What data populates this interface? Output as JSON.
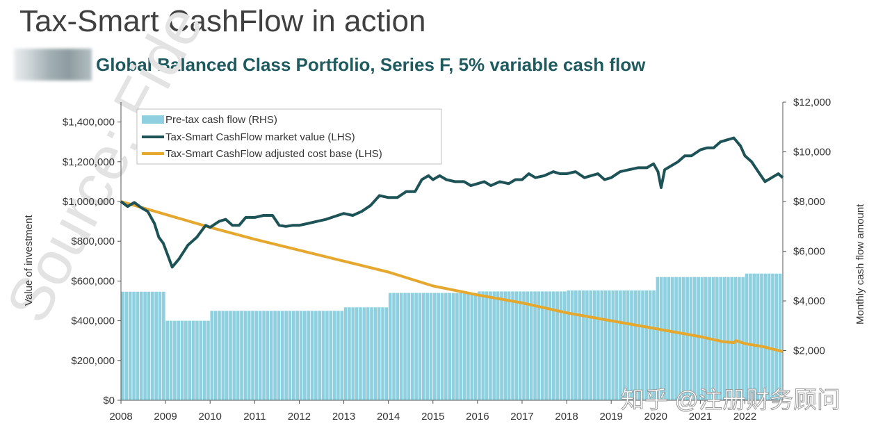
{
  "header": {
    "title": "Tax-Smart CashFlow in action",
    "subtitle": "Global Balanced Class Portfolio, Series F, 5% variable cash flow"
  },
  "watermark": {
    "source_text": "Source: Fide",
    "zhihu_text": "知乎 @注册财务顾问"
  },
  "colors": {
    "bars": "#8ed0df",
    "market_value": "#1d5357",
    "cost_base": "#e6a72e",
    "title": "#404040",
    "subtitle": "#1f5a5f"
  },
  "chart_data": {
    "type": "bar+line",
    "legend_position": "top-left",
    "legend": [
      "Pre-tax cash flow (RHS)",
      "Tax-Smart CashFlow market value (LHS)",
      "Tax-Smart CashFlow adjusted cost base (LHS)"
    ],
    "ylabel_left": "Value of investment",
    "ylabel_right": "Monthly cash flow amount",
    "xlim": [
      2008.0,
      2022.85
    ],
    "ylim_left": [
      0,
      1500000
    ],
    "ylim_right": [
      0,
      12000
    ],
    "x_ticks": [
      "2008",
      "2009",
      "2010",
      "2011",
      "2012",
      "2013",
      "2014",
      "2015",
      "2016",
      "2017",
      "2018",
      "2019",
      "2020",
      "2021",
      "2022"
    ],
    "y_left_ticks": [
      "$0",
      "$200,000",
      "$400,000",
      "$600,000",
      "$800,000",
      "$1,000,000",
      "$1,200,000",
      "$1,400,000"
    ],
    "y_right_ticks": [
      "$2,000",
      "$4,000",
      "$6,000",
      "$8,000",
      "$10,000",
      "$12,000"
    ],
    "y_right_tick_values": [
      2000,
      4000,
      6000,
      8000,
      10000,
      12000
    ],
    "y_left_tick_values": [
      0,
      200000,
      400000,
      600000,
      800000,
      1000000,
      1200000,
      1400000
    ],
    "cash_flow_steps": [
      {
        "from": 2008.0,
        "to": 2009.0,
        "value": 4370
      },
      {
        "from": 2009.0,
        "to": 2010.0,
        "value": 3200
      },
      {
        "from": 2010.0,
        "to": 2012.0,
        "value": 3600
      },
      {
        "from": 2012.0,
        "to": 2013.0,
        "value": 3600
      },
      {
        "from": 2013.0,
        "to": 2014.0,
        "value": 3740
      },
      {
        "from": 2014.0,
        "to": 2015.0,
        "value": 4320
      },
      {
        "from": 2015.0,
        "to": 2016.0,
        "value": 4320
      },
      {
        "from": 2016.0,
        "to": 2017.0,
        "value": 4380
      },
      {
        "from": 2017.0,
        "to": 2018.0,
        "value": 4380
      },
      {
        "from": 2018.0,
        "to": 2019.0,
        "value": 4420
      },
      {
        "from": 2019.0,
        "to": 2020.0,
        "value": 4420
      },
      {
        "from": 2020.0,
        "to": 2021.0,
        "value": 4960
      },
      {
        "from": 2021.0,
        "to": 2022.0,
        "value": 4960
      },
      {
        "from": 2022.0,
        "to": 2022.85,
        "value": 5100
      }
    ],
    "market_value": {
      "x": [
        2008.0,
        2008.15,
        2008.3,
        2008.45,
        2008.6,
        2008.75,
        2008.85,
        2008.95,
        2009.05,
        2009.15,
        2009.3,
        2009.5,
        2009.7,
        2009.9,
        2010.0,
        2010.2,
        2010.35,
        2010.5,
        2010.65,
        2010.8,
        2011.0,
        2011.2,
        2011.4,
        2011.55,
        2011.7,
        2011.85,
        2012.0,
        2012.2,
        2012.4,
        2012.6,
        2012.8,
        2013.0,
        2013.2,
        2013.4,
        2013.6,
        2013.8,
        2014.0,
        2014.2,
        2014.4,
        2014.6,
        2014.75,
        2014.9,
        2015.0,
        2015.15,
        2015.3,
        2015.5,
        2015.7,
        2015.85,
        2016.0,
        2016.15,
        2016.3,
        2016.5,
        2016.7,
        2016.85,
        2017.0,
        2017.15,
        2017.3,
        2017.5,
        2017.7,
        2017.85,
        2018.0,
        2018.2,
        2018.4,
        2018.55,
        2018.7,
        2018.85,
        2019.0,
        2019.2,
        2019.4,
        2019.6,
        2019.8,
        2019.95,
        2020.05,
        2020.12,
        2020.2,
        2020.35,
        2020.5,
        2020.65,
        2020.8,
        2021.0,
        2021.15,
        2021.3,
        2021.45,
        2021.6,
        2021.75,
        2021.9,
        2022.0,
        2022.15,
        2022.3,
        2022.45,
        2022.6,
        2022.75,
        2022.85
      ],
      "values": [
        1000000,
        975000,
        995000,
        970000,
        950000,
        890000,
        820000,
        790000,
        730000,
        670000,
        710000,
        780000,
        820000,
        880000,
        870000,
        900000,
        910000,
        880000,
        880000,
        920000,
        920000,
        930000,
        930000,
        880000,
        875000,
        880000,
        880000,
        890000,
        900000,
        910000,
        925000,
        940000,
        930000,
        950000,
        980000,
        1030000,
        1020000,
        1020000,
        1050000,
        1050000,
        1110000,
        1130000,
        1110000,
        1130000,
        1110000,
        1100000,
        1100000,
        1080000,
        1090000,
        1100000,
        1080000,
        1100000,
        1090000,
        1110000,
        1110000,
        1140000,
        1120000,
        1130000,
        1150000,
        1140000,
        1140000,
        1150000,
        1120000,
        1130000,
        1140000,
        1110000,
        1120000,
        1150000,
        1160000,
        1170000,
        1170000,
        1190000,
        1150000,
        1070000,
        1160000,
        1180000,
        1200000,
        1230000,
        1230000,
        1260000,
        1270000,
        1270000,
        1300000,
        1310000,
        1320000,
        1280000,
        1230000,
        1200000,
        1150000,
        1100000,
        1120000,
        1140000,
        1120000
      ]
    },
    "cost_base": {
      "x": [
        2008.0,
        2009.0,
        2010.0,
        2011.0,
        2012.0,
        2013.0,
        2014.0,
        2015.0,
        2016.0,
        2017.0,
        2018.0,
        2019.0,
        2020.0,
        2021.0,
        2021.5,
        2021.75,
        2021.8,
        2022.0,
        2022.4,
        2022.85
      ],
      "values": [
        1000000,
        935000,
        870000,
        810000,
        755000,
        700000,
        645000,
        575000,
        530000,
        490000,
        440000,
        400000,
        360000,
        320000,
        295000,
        290000,
        300000,
        285000,
        270000,
        245000
      ]
    }
  }
}
